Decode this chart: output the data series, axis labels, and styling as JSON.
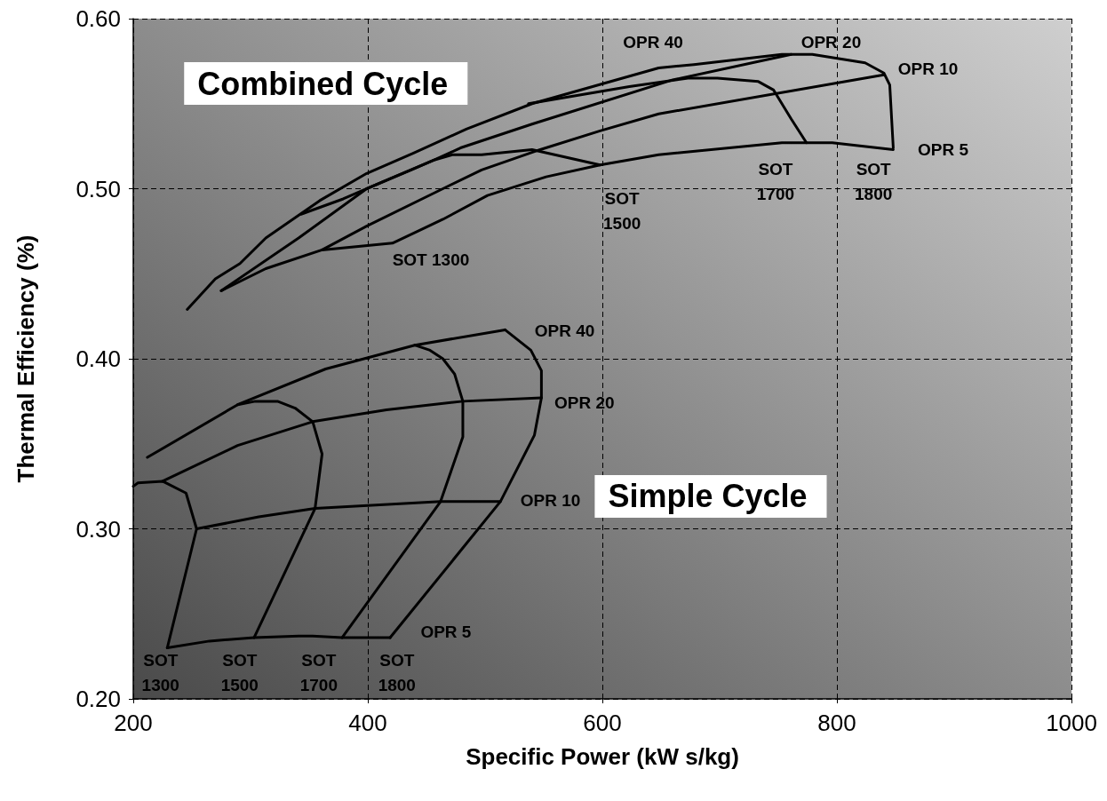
{
  "chart_data": {
    "type": "line",
    "xlabel": "Specific Power (kW s/kg)",
    "ylabel": "Thermal Efficiency (%)",
    "xlim": [
      200,
      1000
    ],
    "xticks": [
      200,
      400,
      600,
      800,
      1000
    ],
    "ylim": [
      0.2,
      0.6
    ],
    "yticks": [
      {
        "value": 0.2,
        "label": "0.20"
      },
      {
        "value": 0.3,
        "label": "0.30"
      },
      {
        "value": 0.4,
        "label": "0.40"
      },
      {
        "value": 0.5,
        "label": "0.50"
      },
      {
        "value": 0.6,
        "label": "0.60"
      }
    ],
    "grid": true,
    "marker": "none",
    "line_style": "solid",
    "series": [
      {
        "color": "#000000",
        "x": [
          246,
          270,
          291,
          313,
          336,
          359,
          399,
          439,
          484,
          540,
          648,
          678,
          753,
          779,
          824,
          840,
          845,
          848
        ],
        "values": [
          0.429,
          0.447,
          0.456,
          0.471,
          0.482,
          0.493,
          0.509,
          0.521,
          0.535,
          0.55,
          0.571,
          0.573,
          0.579,
          0.579,
          0.574,
          0.568,
          0.561,
          0.524
        ]
      },
      {
        "color": "#000000",
        "x": [
          275,
          313,
          361,
          421,
          464,
          502,
          552,
          598,
          648,
          753,
          796,
          848
        ],
        "values": [
          0.44,
          0.453,
          0.464,
          0.468,
          0.482,
          0.496,
          0.507,
          0.514,
          0.52,
          0.527,
          0.527,
          0.523
        ]
      },
      {
        "color": "#000000",
        "x": [
          361,
          399,
          464,
          497,
          547,
          598,
          648,
          840
        ],
        "values": [
          0.464,
          0.478,
          0.5,
          0.511,
          0.523,
          0.534,
          0.544,
          0.567
        ]
      },
      {
        "color": "#000000",
        "x": [
          343,
          379,
          419,
          457,
          479,
          540,
          660,
          761
        ],
        "values": [
          0.485,
          0.494,
          0.506,
          0.517,
          0.524,
          0.538,
          0.564,
          0.579
        ]
      },
      {
        "color": "#000000",
        "x": [
          275,
          341,
          399,
          437,
          457,
          472,
          497,
          540,
          598
        ],
        "values": [
          0.44,
          0.471,
          0.5,
          0.511,
          0.517,
          0.52,
          0.52,
          0.523,
          0.514
        ]
      },
      {
        "color": "#000000",
        "x": [
          537,
          623,
          673,
          698,
          733,
          746,
          761,
          774
        ],
        "values": [
          0.55,
          0.56,
          0.565,
          0.565,
          0.563,
          0.558,
          0.541,
          0.527
        ]
      },
      {
        "color": "#000000",
        "x": [
          212,
          289,
          364,
          440,
          517
        ],
        "values": [
          0.342,
          0.373,
          0.394,
          0.408,
          0.417
        ]
      },
      {
        "color": "#000000",
        "x": [
          517,
          539,
          548,
          548,
          542,
          513,
          419
        ],
        "values": [
          0.417,
          0.405,
          0.393,
          0.377,
          0.355,
          0.316,
          0.236
        ]
      },
      {
        "color": "#000000",
        "x": [
          225,
          289,
          353,
          416,
          481,
          548
        ],
        "values": [
          0.328,
          0.349,
          0.363,
          0.37,
          0.375,
          0.377
        ]
      },
      {
        "color": "#000000",
        "x": [
          254,
          307,
          355,
          462,
          513
        ],
        "values": [
          0.3,
          0.307,
          0.312,
          0.316,
          0.316
        ]
      },
      {
        "color": "#000000",
        "x": [
          229,
          265,
          303,
          341,
          353,
          378,
          419
        ],
        "values": [
          0.23,
          0.234,
          0.236,
          0.237,
          0.237,
          0.236,
          0.236
        ]
      },
      {
        "color": "#000000",
        "x": [
          200,
          204,
          225,
          245,
          254,
          229
        ],
        "values": [
          0.325,
          0.327,
          0.328,
          0.321,
          0.3,
          0.23
        ]
      },
      {
        "color": "#000000",
        "x": [
          289,
          304,
          323,
          338,
          353,
          361,
          355,
          303
        ],
        "values": [
          0.373,
          0.375,
          0.375,
          0.371,
          0.363,
          0.344,
          0.312,
          0.236
        ]
      },
      {
        "color": "#000000",
        "x": [
          440,
          453,
          464,
          474,
          481,
          481,
          462,
          378
        ],
        "values": [
          0.408,
          0.405,
          0.4,
          0.391,
          0.375,
          0.354,
          0.316,
          0.236
        ]
      }
    ],
    "annotations": [
      "Combined Cycle",
      "Simple Cycle",
      "OPR 40",
      "OPR 20",
      "OPR 10",
      "OPR 5",
      "SOT 1300",
      "SOT\n1500",
      "SOT\n1700",
      "SOT\n1800",
      "OPR 40",
      "OPR 20",
      "OPR 10",
      "OPR 5",
      "SOT\n1300",
      "SOT\n1500",
      "SOT\n1700",
      "SOT\n1800"
    ]
  }
}
